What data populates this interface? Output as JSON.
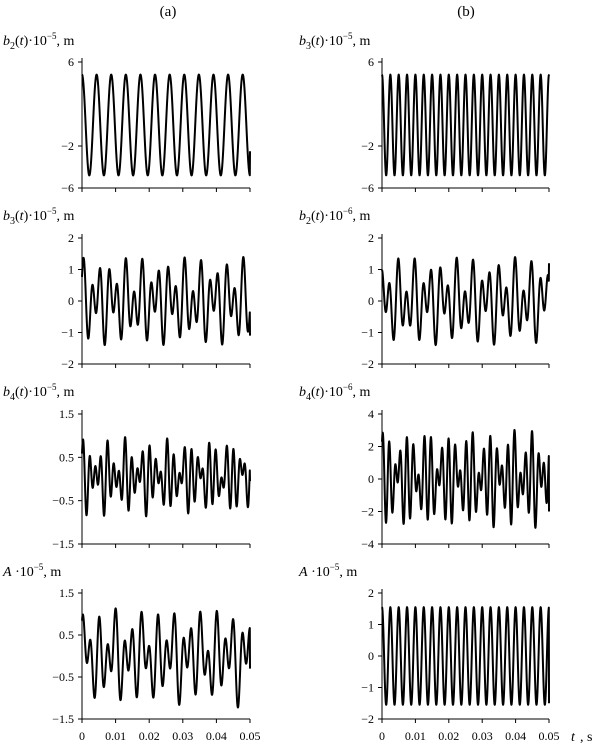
{
  "columns": [
    {
      "id": "a",
      "label": "(a)"
    },
    {
      "id": "b",
      "label": "(b)"
    }
  ],
  "x_axis": {
    "label": "t",
    "unit": ", s",
    "ticks": [
      "0",
      "0.01",
      "0.02",
      "0.03",
      "0.04",
      "0.05"
    ]
  },
  "chart_data": [
    {
      "id": "a1",
      "type": "line",
      "column": "a",
      "ylabel": {
        "var": "b",
        "sub": "2",
        "arg": "(t)",
        "mult": "·10",
        "exp": "−5",
        "unit": ", m"
      },
      "xlim": [
        0,
        0.05
      ],
      "ylim": [
        -6,
        6
      ],
      "yticks": [
        6,
        -2,
        -6
      ],
      "ytick_labels": [
        "6",
        "−2",
        "−6"
      ],
      "signal": {
        "kind": "sine",
        "amplitude": 4.8,
        "frequency_hz": 230,
        "phase": 1.57,
        "end_value": -2.5
      },
      "color": "#000000"
    },
    {
      "id": "b1",
      "type": "line",
      "column": "b",
      "ylabel": {
        "var": "b",
        "sub": "3",
        "arg": "(t)",
        "mult": "·10",
        "exp": "−5",
        "unit": ", m"
      },
      "xlim": [
        0,
        0.05
      ],
      "ylim": [
        -6,
        6
      ],
      "yticks": [
        6,
        -2,
        -6
      ],
      "ytick_labels": [
        "6",
        "−2",
        "−6"
      ],
      "signal": {
        "kind": "sine",
        "amplitude": 4.8,
        "frequency_hz": 400,
        "phase": 1.57,
        "end_value": 4.7
      },
      "color": "#000000"
    },
    {
      "id": "a2",
      "type": "line",
      "column": "a",
      "ylabel": {
        "var": "b",
        "sub": "3",
        "arg": "(t)",
        "mult": "·10",
        "exp": "−5",
        "unit": ", m"
      },
      "xlim": [
        0,
        0.05
      ],
      "ylim": [
        -2,
        2
      ],
      "yticks": [
        2,
        1,
        0,
        -1,
        -2
      ],
      "ytick_labels": [
        "2",
        "1",
        "0",
        "−1",
        "−2"
      ],
      "signal": {
        "kind": "sum",
        "terms": [
          [
            0.85,
            400,
            0.3
          ],
          [
            0.55,
            230,
            1.2
          ]
        ],
        "end_value": -1.1
      },
      "color": "#000000"
    },
    {
      "id": "b2",
      "type": "line",
      "column": "b",
      "ylabel": {
        "var": "b",
        "sub": "2",
        "arg": "(t)",
        "mult": "·10",
        "exp": "−6",
        "unit": ", m"
      },
      "xlim": [
        0,
        0.05
      ],
      "ylim": [
        -2,
        2
      ],
      "yticks": [
        2,
        1,
        0,
        -1,
        -2
      ],
      "ytick_labels": [
        "2",
        "1",
        "0",
        "−1",
        "−2"
      ],
      "signal": {
        "kind": "sum",
        "terms": [
          [
            0.85,
            400,
            2.0
          ],
          [
            0.55,
            230,
            0.4
          ]
        ],
        "end_value": 1.2
      },
      "color": "#000000"
    },
    {
      "id": "a3",
      "type": "line",
      "column": "a",
      "ylabel": {
        "var": "b",
        "sub": "4",
        "arg": "(t)",
        "mult": "·10",
        "exp": "−5",
        "unit": ", m"
      },
      "xlim": [
        0,
        0.05
      ],
      "ylim": [
        -1.5,
        1.5
      ],
      "yticks": [
        1.5,
        0.5,
        -0.5,
        -1.5
      ],
      "ytick_labels": [
        "1.5",
        "0.5",
        "−0.5",
        "−1.5"
      ],
      "signal": {
        "kind": "sum",
        "terms": [
          [
            0.45,
            560,
            0.2
          ],
          [
            0.35,
            400,
            1.1
          ],
          [
            0.15,
            230,
            2.0
          ]
        ],
        "offset": 0.05,
        "end_value": -0.05
      },
      "color": "#000000"
    },
    {
      "id": "b3",
      "type": "line",
      "column": "b",
      "ylabel": {
        "var": "b",
        "sub": "4",
        "arg": "(t)",
        "mult": "·10",
        "exp": "−6",
        "unit": ", m"
      },
      "xlim": [
        0,
        0.05
      ],
      "ylim": [
        -4,
        4
      ],
      "yticks": [
        4,
        2,
        0,
        -2,
        -4
      ],
      "ytick_labels": [
        "4",
        "2",
        "0",
        "−2",
        "−4"
      ],
      "signal": {
        "kind": "sum",
        "terms": [
          [
            1.7,
            560,
            0.5
          ],
          [
            1.2,
            400,
            1.8
          ],
          [
            0.4,
            230,
            0.9
          ]
        ],
        "end_value": -2.0
      },
      "color": "#000000"
    },
    {
      "id": "a4",
      "type": "line",
      "column": "a",
      "ylabel": {
        "var": "A",
        "sub": "",
        "arg": "",
        "mult": " ·10",
        "exp": "−5",
        "unit": ", m"
      },
      "xlim": [
        0,
        0.05
      ],
      "ylim": [
        -1.5,
        1.5
      ],
      "yticks": [
        1.5,
        0.5,
        -0.5,
        -1.5
      ],
      "ytick_labels": [
        "1.5",
        "0.5",
        "−0.5",
        "−1.5"
      ],
      "signal": {
        "kind": "sum",
        "terms": [
          [
            0.65,
            400,
            1.3
          ],
          [
            0.45,
            230,
            0.2
          ],
          [
            0.15,
            120,
            1.0
          ]
        ],
        "end_value": -0.3
      },
      "color": "#000000"
    },
    {
      "id": "b4",
      "type": "line",
      "column": "b",
      "ylabel": {
        "var": "A",
        "sub": "",
        "arg": "",
        "mult": " ·10",
        "exp": "−5",
        "unit": ", m"
      },
      "xlim": [
        0,
        0.05
      ],
      "ylim": [
        -2,
        2
      ],
      "yticks": [
        2,
        1,
        0,
        -1,
        -2
      ],
      "ytick_labels": [
        "2",
        "1",
        "0",
        "−1",
        "−2"
      ],
      "signal": {
        "kind": "sine",
        "amplitude": 1.55,
        "frequency_hz": 400,
        "phase": 1.57,
        "end_value": -1.5
      },
      "color": "#000000"
    }
  ]
}
